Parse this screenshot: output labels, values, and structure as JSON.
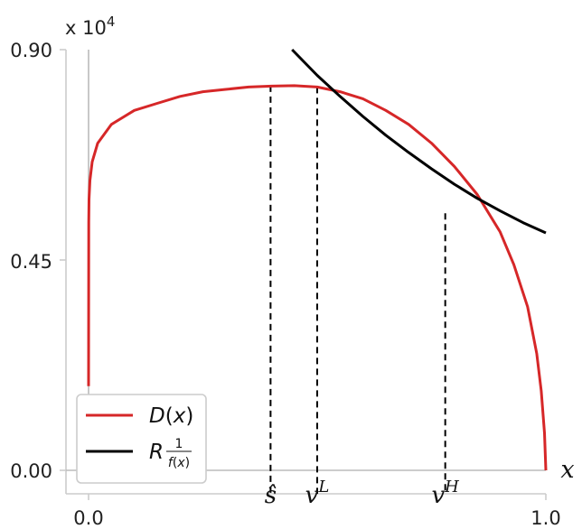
{
  "chart_data": {
    "type": "line",
    "scale_label": "x 10",
    "scale_exponent": "4",
    "xlabel": "x",
    "x_ticks": [
      "0.0",
      "1.0"
    ],
    "y_ticks": [
      "0.00",
      "0.45",
      "0.90"
    ],
    "xlim": [
      -0.04,
      1.0
    ],
    "ylim": [
      -0.05,
      0.9
    ],
    "grid": false,
    "legend": {
      "position": "bottom-left",
      "entries": [
        {
          "label": "D(x)",
          "color": "#d62728"
        },
        {
          "label": "R 1/f(x)",
          "color": "#000000"
        }
      ]
    },
    "series": [
      {
        "name": "D(x)",
        "color": "#d62728",
        "x": [
          0.0,
          0.0003,
          0.001,
          0.003,
          0.008,
          0.02,
          0.05,
          0.1,
          0.15,
          0.2,
          0.25,
          0.3,
          0.35,
          0.4,
          0.45,
          0.5,
          0.55,
          0.6,
          0.65,
          0.7,
          0.75,
          0.8,
          0.85,
          0.9,
          0.93,
          0.96,
          0.98,
          0.99,
          0.997,
          1.0
        ],
        "values": [
          0.18,
          0.53,
          0.58,
          0.62,
          0.66,
          0.7,
          0.74,
          0.77,
          0.785,
          0.8,
          0.81,
          0.815,
          0.82,
          0.822,
          0.823,
          0.82,
          0.81,
          0.795,
          0.77,
          0.74,
          0.7,
          0.65,
          0.59,
          0.51,
          0.44,
          0.35,
          0.25,
          0.17,
          0.08,
          0.0
        ]
      },
      {
        "name": "R 1/f(x)",
        "color": "#000000",
        "x": [
          0.445,
          0.5,
          0.55,
          0.6,
          0.65,
          0.7,
          0.75,
          0.8,
          0.85,
          0.9,
          0.95,
          1.0
        ],
        "values": [
          0.9,
          0.845,
          0.8,
          0.757,
          0.717,
          0.68,
          0.645,
          0.612,
          0.582,
          0.555,
          0.53,
          0.508
        ]
      }
    ],
    "markers": [
      {
        "label": "ŝ",
        "sup": "",
        "x": 0.398,
        "y": 0.823
      },
      {
        "label": "v",
        "sup": "L",
        "x": 0.5,
        "y": 0.82
      },
      {
        "label": "v",
        "sup": "H",
        "x": 0.78,
        "y": 0.55
      }
    ]
  }
}
